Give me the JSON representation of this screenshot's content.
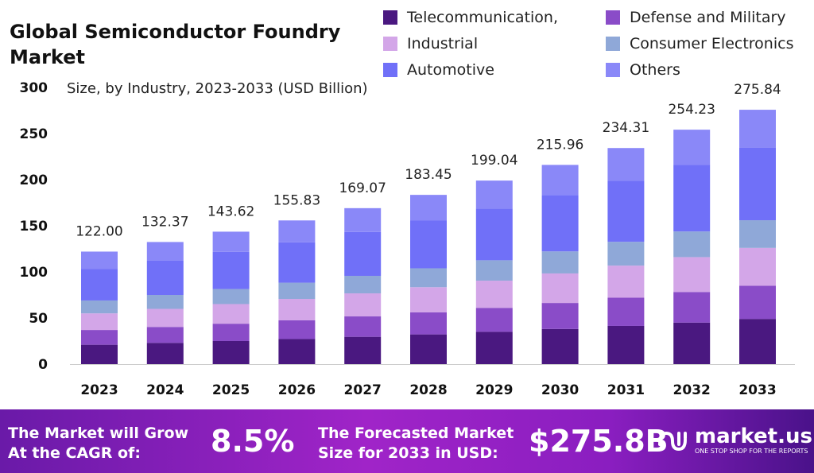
{
  "chart_data": {
    "type": "bar",
    "stacked": true,
    "title": "Global Semiconductor Foundry Market",
    "subtitle": "Size, by Industry, 2023-2033 (USD Billion)",
    "xlabel": "",
    "ylabel": "",
    "ylim": [
      0,
      300
    ],
    "yticks": [
      0,
      50,
      100,
      150,
      200,
      250,
      300
    ],
    "grid": false,
    "legend_position": "top-right",
    "categories": [
      "2023",
      "2024",
      "2025",
      "2026",
      "2027",
      "2028",
      "2029",
      "2030",
      "2031",
      "2032",
      "2033"
    ],
    "totals": [
      "122.00",
      "132.37",
      "143.62",
      "155.83",
      "169.07",
      "183.45",
      "199.04",
      "215.96",
      "234.31",
      "254.23",
      "275.84"
    ],
    "series": [
      {
        "name": "Telecommunication,",
        "color": "#4a1880",
        "values": [
          21.0,
          23.0,
          25.0,
          27.2,
          29.6,
          32.2,
          35.0,
          38.1,
          41.4,
          45.0,
          49.0
        ]
      },
      {
        "name": "Defense and Military",
        "color": "#8a4cc8",
        "values": [
          16.0,
          17.3,
          18.8,
          20.4,
          22.1,
          24.0,
          26.0,
          28.2,
          30.6,
          33.2,
          36.0
        ]
      },
      {
        "name": "Industrial",
        "color": "#d3a6e8",
        "values": [
          18.0,
          19.6,
          21.3,
          23.1,
          25.0,
          27.2,
          29.5,
          32.0,
          34.8,
          37.8,
          41.0
        ]
      },
      {
        "name": "Consumer Electronics",
        "color": "#8fa8d8",
        "values": [
          14.0,
          15.1,
          16.3,
          17.6,
          19.0,
          20.5,
          22.1,
          23.9,
          25.8,
          27.8,
          30.0
        ]
      },
      {
        "name": "Automotive",
        "color": "#7070f8",
        "values": [
          34.0,
          37.1,
          40.3,
          43.8,
          47.6,
          51.7,
          56.2,
          61.1,
          66.4,
          72.2,
          78.5
        ]
      },
      {
        "name": "Others",
        "color": "#8a88f8",
        "values": [
          19.0,
          20.3,
          21.9,
          23.7,
          25.8,
          27.9,
          30.2,
          32.7,
          35.3,
          38.2,
          41.3
        ]
      }
    ]
  },
  "banner": {
    "cagr_label_1": "The Market will Grow",
    "cagr_label_2": "At the CAGR of:",
    "cagr_value": "8.5%",
    "forecast_label_1": "The Forecasted Market",
    "forecast_label_2": "Size for 2033 in USD:",
    "forecast_value": "$275.8B",
    "logo_name": "market.us",
    "logo_tagline": "ONE STOP SHOP FOR THE REPORTS"
  }
}
